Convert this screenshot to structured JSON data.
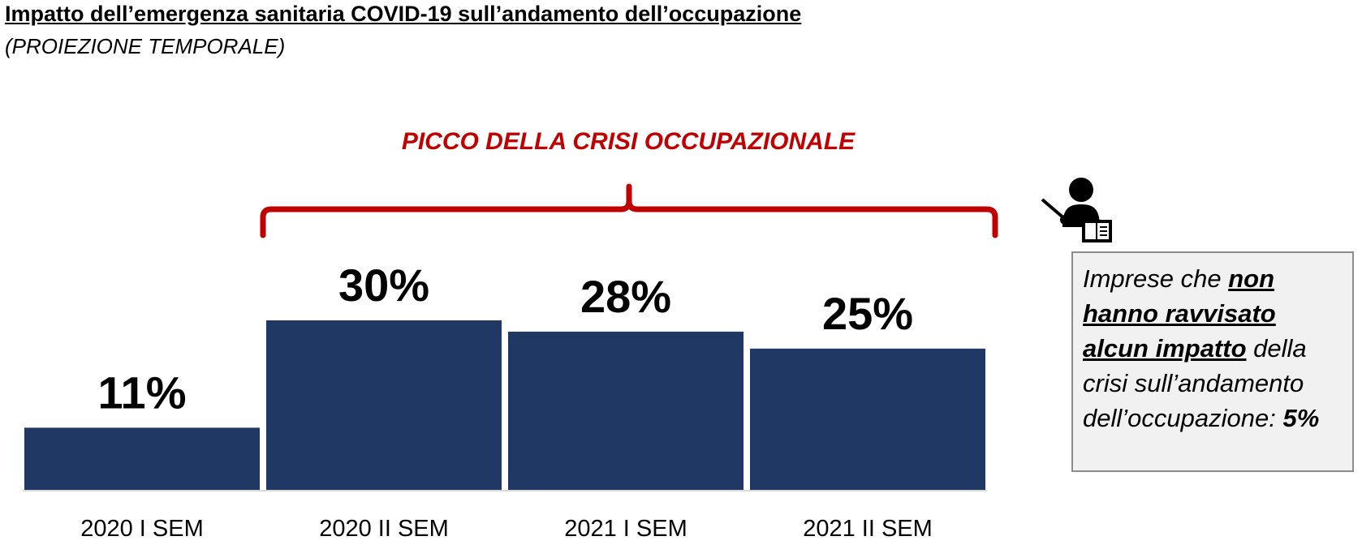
{
  "header": {
    "title": "Impatto dell’emergenza sanitaria COVID-19 sull’andamento dell’occupazione",
    "subtitle": "(PROIEZIONE TEMPORALE)"
  },
  "peak": {
    "label": "PICCO DELLA CRISI OCCUPAZIONALE",
    "color": "#c00000",
    "from_category": "2020 II SEM",
    "to_category": "2021 II SEM"
  },
  "note": {
    "icon": "teacher-presentation-icon",
    "text_before": "Imprese che ",
    "highlight": "non hanno ravvisato alcun impatto",
    "text_after": " della crisi sull’andamento dell’occupazione: ",
    "value": "5%"
  },
  "chart_data": {
    "type": "bar",
    "title": "",
    "xlabel": "",
    "ylabel": "",
    "categories": [
      "2020 I SEM",
      "2020 II SEM",
      "2021 I SEM",
      "2021 II SEM"
    ],
    "values": [
      11,
      30,
      28,
      25
    ],
    "value_labels": [
      "11%",
      "30%",
      "28%",
      "25%"
    ],
    "unit": "%",
    "ylim": [
      0,
      30
    ],
    "bar_color": "#203864",
    "grid": false,
    "legend": "none"
  }
}
